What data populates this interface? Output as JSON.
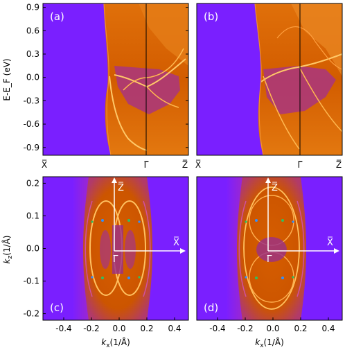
{
  "chart_data": [
    {
      "panel": "(a)",
      "type": "heatmap",
      "ylabel": "E-E_F (eV)",
      "ylim": [
        -1.0,
        0.95
      ],
      "yticks": [
        "0.9",
        "0.6",
        "0.3",
        "0.0",
        "-0.3",
        "-0.6",
        "-0.9"
      ],
      "xticks": [
        "X̅",
        "Γ̅",
        "Z̅"
      ]
    },
    {
      "panel": "(b)",
      "type": "heatmap",
      "ylim": [
        -1.0,
        0.95
      ],
      "xticks": [
        "X̅",
        "Γ̅",
        "Z̅"
      ]
    },
    {
      "panel": "(c)",
      "type": "heatmap",
      "xlabel": "k_x(1/Å)",
      "ylabel": "k_z(1/Å)",
      "xlim": [
        -0.55,
        0.5
      ],
      "ylim": [
        -0.22,
        0.22
      ],
      "xticks": [
        "-0.4",
        "-0.2",
        "0.0",
        "0.2",
        "0.4"
      ],
      "yticks": [
        "0.2",
        "0.1",
        "0.0",
        "-0.1",
        "-0.2"
      ],
      "inset_axes": [
        "Z̅",
        "X̅",
        "Γ̅"
      ]
    },
    {
      "panel": "(d)",
      "type": "heatmap",
      "xlabel": "k_x(1/Å)",
      "xlim": [
        -0.55,
        0.5
      ],
      "ylim": [
        -0.22,
        0.22
      ],
      "xticks": [
        "-0.4",
        "-0.2",
        "0.0",
        "0.2",
        "0.4"
      ],
      "inset_axes": [
        "Z̅",
        "X̅",
        "Γ̅"
      ]
    }
  ],
  "colors": {
    "background": "#7a1fff",
    "intensity_mid": "#d45a00",
    "intensity_high": "#ffc060"
  }
}
